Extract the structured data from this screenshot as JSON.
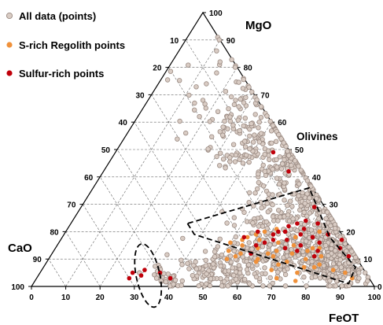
{
  "chart_data": {
    "type": "scatter",
    "subtype": "ternary",
    "vertices": {
      "top": "MgO",
      "left": "CaO",
      "right": "FeOT"
    },
    "axes": {
      "bottom": {
        "ticks": [
          "0",
          "10",
          "20",
          "30",
          "40",
          "50",
          "60",
          "70",
          "80",
          "90",
          "100"
        ]
      },
      "left": {
        "ticks": [
          "10",
          "20",
          "30",
          "40",
          "50",
          "60",
          "70",
          "80",
          "90",
          "100"
        ]
      },
      "right": {
        "ticks": [
          "0",
          "10",
          "20",
          "30",
          "40",
          "50",
          "60",
          "70",
          "80",
          "90",
          "100"
        ]
      }
    },
    "grid": true,
    "grid_step": 10,
    "legend": {
      "position": "top-left",
      "entries": [
        {
          "label": "All data (points)",
          "color": "#d9ccc4",
          "stroke": "#9a8a82"
        },
        {
          "label": "S-rich Regolith points",
          "color": "#f0913a"
        },
        {
          "label": "Sulfur-rich points",
          "color": "#c0000a"
        }
      ]
    },
    "annotations": [
      {
        "text": "Olivines"
      }
    ],
    "regions": [
      {
        "shape": "ellipse",
        "style": "dashed",
        "center": [
          0.04,
          0.64,
          0.32
        ],
        "tilt_deg": -12
      },
      {
        "shape": "polygon",
        "style": "dashed",
        "vertices": [
          [
            0.23,
            0.43,
            0.34
          ],
          [
            0.19,
            0.43,
            0.38
          ],
          [
            0.01,
            0.07,
            0.92
          ],
          [
            0.07,
            0.02,
            0.91
          ],
          [
            0.18,
            0.04,
            0.78
          ],
          [
            0.36,
            0.01,
            0.63
          ]
        ]
      }
    ],
    "series": [
      {
        "name": "All data (points)",
        "color": "#d9ccc4",
        "generated_clusters": [
          {
            "center": [
              0.08,
              0.1,
              0.82
            ],
            "spread": 0.05,
            "count": 230
          },
          {
            "center": [
              0.16,
              0.06,
              0.78
            ],
            "spread": 0.05,
            "count": 170
          },
          {
            "center": [
              0.11,
              0.26,
              0.63
            ],
            "spread": 0.06,
            "count": 150
          },
          {
            "center": [
              0.06,
              0.42,
              0.52
            ],
            "spread": 0.05,
            "count": 110
          },
          {
            "center": [
              0.3,
              0.07,
              0.63
            ],
            "spread": 0.06,
            "count": 120
          },
          {
            "center": [
              0.45,
              0.05,
              0.5
            ],
            "spread": 0.07,
            "count": 95
          },
          {
            "center": [
              0.58,
              0.04,
              0.38
            ],
            "spread": 0.08,
            "count": 75
          },
          {
            "center": [
              0.7,
              0.04,
              0.26
            ],
            "spread": 0.09,
            "count": 40
          },
          {
            "center": [
              0.5,
              0.14,
              0.36
            ],
            "spread": 0.07,
            "count": 45
          },
          {
            "center": [
              0.22,
              0.18,
              0.6
            ],
            "spread": 0.06,
            "count": 70
          },
          {
            "center": [
              0.03,
              0.58,
              0.39
            ],
            "spread": 0.03,
            "count": 30
          }
        ],
        "points": [
          [
            0.05,
            0.66,
            0.29
          ],
          [
            0.03,
            0.62,
            0.35
          ],
          [
            0.02,
            0.55,
            0.43
          ],
          [
            0.04,
            0.51,
            0.45
          ],
          [
            0.86,
            0.03,
            0.11
          ],
          [
            0.82,
            0.04,
            0.14
          ],
          [
            0.78,
            0.07,
            0.15
          ],
          [
            0.74,
            0.12,
            0.14
          ],
          [
            0.68,
            0.16,
            0.16
          ],
          [
            0.62,
            0.2,
            0.18
          ],
          [
            0.56,
            0.27,
            0.17
          ],
          [
            0.01,
            0.02,
            0.97
          ],
          [
            0.02,
            0.01,
            0.97
          ],
          [
            0.03,
            0.03,
            0.94
          ],
          [
            0.05,
            0.02,
            0.93
          ]
        ]
      },
      {
        "name": "S-rich Regolith points",
        "color": "#f0913a",
        "points": [
          [
            0.15,
            0.31,
            0.54
          ],
          [
            0.12,
            0.33,
            0.55
          ],
          [
            0.1,
            0.29,
            0.61
          ],
          [
            0.14,
            0.27,
            0.59
          ],
          [
            0.17,
            0.25,
            0.58
          ],
          [
            0.11,
            0.24,
            0.65
          ],
          [
            0.13,
            0.22,
            0.65
          ],
          [
            0.16,
            0.2,
            0.64
          ],
          [
            0.09,
            0.21,
            0.7
          ],
          [
            0.12,
            0.18,
            0.7
          ],
          [
            0.15,
            0.16,
            0.69
          ],
          [
            0.18,
            0.14,
            0.68
          ],
          [
            0.1,
            0.15,
            0.75
          ],
          [
            0.13,
            0.13,
            0.74
          ],
          [
            0.08,
            0.12,
            0.8
          ],
          [
            0.11,
            0.1,
            0.79
          ],
          [
            0.14,
            0.09,
            0.77
          ],
          [
            0.07,
            0.17,
            0.76
          ],
          [
            0.05,
            0.2,
            0.75
          ],
          [
            0.08,
            0.24,
            0.68
          ],
          [
            0.06,
            0.27,
            0.67
          ],
          [
            0.09,
            0.3,
            0.61
          ],
          [
            0.13,
            0.36,
            0.51
          ],
          [
            0.1,
            0.38,
            0.52
          ],
          [
            0.16,
            0.34,
            0.5
          ],
          [
            0.18,
            0.28,
            0.54
          ],
          [
            0.2,
            0.22,
            0.58
          ],
          [
            0.21,
            0.18,
            0.61
          ],
          [
            0.12,
            0.25,
            0.63
          ],
          [
            0.14,
            0.11,
            0.75
          ],
          [
            0.03,
            0.27,
            0.7
          ],
          [
            0.02,
            0.22,
            0.76
          ],
          [
            0.2,
            0.06,
            0.74
          ],
          [
            0.05,
            0.06,
            0.89
          ],
          [
            0.03,
            0.05,
            0.92
          ],
          [
            0.17,
            0.3,
            0.53
          ],
          [
            0.11,
            0.35,
            0.54
          ],
          [
            0.19,
            0.25,
            0.56
          ],
          [
            0.07,
            0.14,
            0.79
          ],
          [
            0.06,
            0.09,
            0.85
          ]
        ]
      },
      {
        "name": "Sulfur-rich points",
        "color": "#c0000a",
        "points": [
          [
            0.03,
            0.7,
            0.27
          ],
          [
            0.05,
            0.68,
            0.27
          ],
          [
            0.04,
            0.66,
            0.3
          ],
          [
            0.06,
            0.64,
            0.3
          ],
          [
            0.05,
            0.6,
            0.35
          ],
          [
            0.03,
            0.58,
            0.39
          ],
          [
            0.18,
            0.29,
            0.53
          ],
          [
            0.15,
            0.27,
            0.58
          ],
          [
            0.16,
            0.24,
            0.6
          ],
          [
            0.19,
            0.2,
            0.61
          ],
          [
            0.17,
            0.17,
            0.66
          ],
          [
            0.15,
            0.14,
            0.71
          ],
          [
            0.19,
            0.12,
            0.69
          ],
          [
            0.2,
            0.16,
            0.64
          ],
          [
            0.22,
            0.14,
            0.64
          ],
          [
            0.21,
            0.1,
            0.69
          ],
          [
            0.18,
            0.09,
            0.73
          ],
          [
            0.16,
            0.08,
            0.76
          ],
          [
            0.13,
            0.1,
            0.77
          ],
          [
            0.11,
            0.12,
            0.77
          ],
          [
            0.24,
            0.08,
            0.68
          ],
          [
            0.17,
            0.21,
            0.62
          ],
          [
            0.2,
            0.24,
            0.56
          ],
          [
            0.14,
            0.19,
            0.67
          ],
          [
            0.23,
            0.05,
            0.72
          ],
          [
            0.19,
            0.04,
            0.77
          ],
          [
            0.14,
            0.03,
            0.83
          ],
          [
            0.11,
            0.02,
            0.87
          ],
          [
            0.2,
            0.18,
            0.62
          ],
          [
            0.13,
            0.16,
            0.71
          ],
          [
            0.49,
            0.05,
            0.46
          ],
          [
            0.42,
            0.04,
            0.54
          ],
          [
            0.29,
            0.03,
            0.68
          ],
          [
            0.17,
            0.01,
            0.82
          ],
          [
            0.12,
            0.3,
            0.58
          ],
          [
            0.23,
            0.11,
            0.66
          ]
        ]
      }
    ]
  }
}
